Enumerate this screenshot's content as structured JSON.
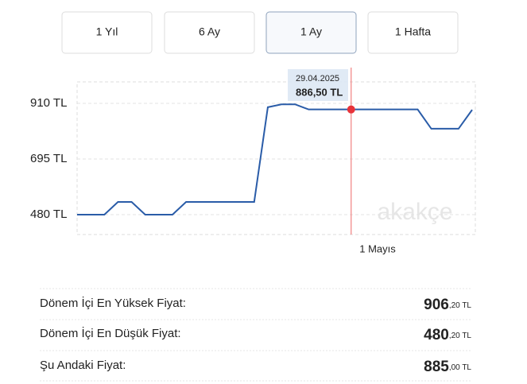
{
  "tabs": [
    "1 Yıl",
    "6 Ay",
    "1 Ay",
    "1 Hafta"
  ],
  "chart_data": {
    "type": "line",
    "categories": [
      null,
      null,
      null,
      null,
      null,
      null,
      null,
      null,
      null,
      null,
      null,
      null,
      null,
      null,
      null,
      null,
      null,
      null,
      null,
      null,
      null,
      null,
      "1 Mayıs",
      null,
      null,
      null,
      null,
      null,
      null,
      null
    ],
    "series": [
      {
        "color": "#2a5ca8",
        "values": [
          480,
          480,
          480,
          529,
          529,
          480,
          480,
          480,
          529,
          529,
          529,
          529,
          529,
          529,
          895,
          906.2,
          906.2,
          886.5,
          886.5,
          886.5,
          886.5,
          886.5,
          886.5,
          886.5,
          886.5,
          886.5,
          812,
          812,
          812,
          885
        ]
      }
    ],
    "ylim": [
      403,
      993
    ],
    "yticks": [
      {
        "value": 480,
        "label": "480 TL"
      },
      {
        "value": 695,
        "label": "695 TL"
      },
      {
        "value": 910,
        "label": "910 TL"
      }
    ],
    "grid": true,
    "tooltip": {
      "date": "29.04.2025",
      "price": "886,50 TL"
    },
    "watermark": "akakçe"
  },
  "stats": [
    {
      "label": "Dönem İçi En Yüksek Fiyat:",
      "main": "906",
      "fraction": ",20 TL"
    },
    {
      "label": "Dönem İçi En Düşük Fiyat:",
      "main": "480",
      "fraction": ",20 TL"
    },
    {
      "label": "Şu Andaki Fiyat:",
      "main": "885",
      "fraction": ",00 TL"
    }
  ]
}
